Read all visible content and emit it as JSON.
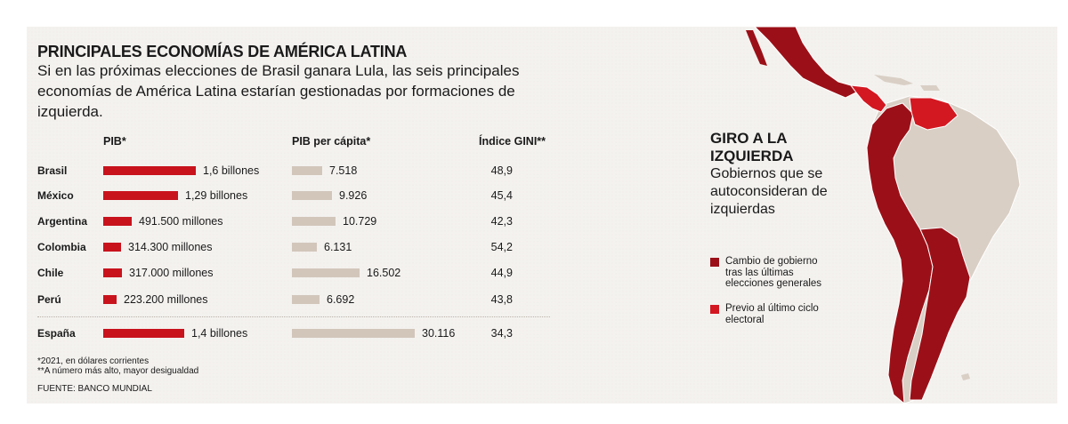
{
  "title": "PRINCIPALES ECONOMÍAS DE AMÉRICA LATINA",
  "subtitle": "Si en las próximas elecciones de Brasil ganara Lula, las seis principales economías de América Latina estarían gestionadas por formaciones de izquierda.",
  "colors": {
    "pib": "#c8131d",
    "per_capita": "#d2c6bb",
    "recent_change": "#9b1018",
    "previous_cycle": "#d31822",
    "other": "#d9cfc5"
  },
  "chart_data": {
    "type": "table",
    "columns": [
      "PIB*",
      "PIB per cápita*",
      "Índice GINI**"
    ],
    "rows": [
      {
        "country": "Brasil",
        "pib": 1600000,
        "pib_label": "1,6 billones",
        "per_capita": 7518,
        "per_capita_label": "7.518",
        "gini": "48,9"
      },
      {
        "country": "México",
        "pib": 1290000,
        "pib_label": "1,29 billones",
        "per_capita": 9926,
        "per_capita_label": "9.926",
        "gini": "45,4"
      },
      {
        "country": "Argentina",
        "pib": 491500,
        "pib_label": "491.500 millones",
        "per_capita": 10729,
        "per_capita_label": "10.729",
        "gini": "42,3"
      },
      {
        "country": "Colombia",
        "pib": 314300,
        "pib_label": "314.300 millones",
        "per_capita": 6131,
        "per_capita_label": "6.131",
        "gini": "54,2"
      },
      {
        "country": "Chile",
        "pib": 317000,
        "pib_label": "317.000 millones",
        "per_capita": 16502,
        "per_capita_label": "16.502",
        "gini": "44,9"
      },
      {
        "country": "Perú",
        "pib": 223200,
        "pib_label": "223.200 millones",
        "per_capita": 6692,
        "per_capita_label": "6.692",
        "gini": "43,8"
      },
      {
        "country": "España",
        "pib": 1400000,
        "pib_label": "1,4 billones",
        "per_capita": 30116,
        "per_capita_label": "30.116",
        "gini": "34,3"
      }
    ]
  },
  "notes": [
    "*2021, en dólares corrientes",
    "**A número más alto, mayor desigualdad"
  ],
  "source": "FUENTE: BANCO MUNDIAL",
  "side": {
    "title": "GIRO A LA IZQUIERDA",
    "subtitle": "Gobiernos que se autoconsideran de izquierdas",
    "legend": [
      {
        "label": "Cambio de gobierno tras las últimas elecciones generales"
      },
      {
        "label": "Previo al último ciclo electoral"
      }
    ]
  }
}
